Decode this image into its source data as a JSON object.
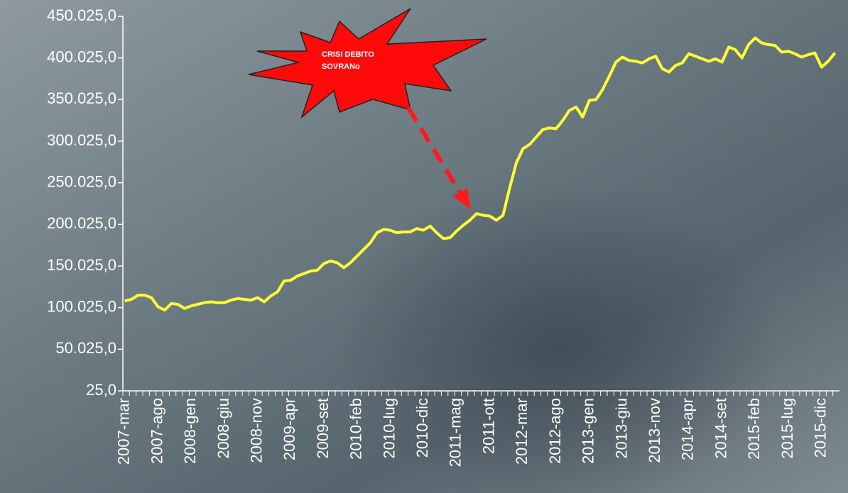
{
  "chart_data": {
    "type": "line",
    "annotation": [
      "CRISI DEBITO",
      "SOVRANo"
    ],
    "categories": [
      "2007-mar",
      null,
      null,
      null,
      null,
      "2007-ago",
      null,
      null,
      null,
      null,
      "2008-gen",
      null,
      null,
      null,
      null,
      "2008-giu",
      null,
      null,
      null,
      null,
      "2008-nov",
      null,
      null,
      null,
      null,
      "2009-apr",
      null,
      null,
      null,
      null,
      "2009-set",
      null,
      null,
      null,
      null,
      "2010-feb",
      null,
      null,
      null,
      null,
      "2010-lug",
      null,
      null,
      null,
      null,
      "2010-dic",
      null,
      null,
      null,
      null,
      "2011-mag",
      null,
      null,
      null,
      null,
      "2011-ott",
      null,
      null,
      null,
      null,
      "2012-mar",
      null,
      null,
      null,
      null,
      "2012-ago",
      null,
      null,
      null,
      null,
      "2013-gen",
      null,
      null,
      null,
      null,
      "2013-giu",
      null,
      null,
      null,
      null,
      "2013-nov",
      null,
      null,
      null,
      null,
      "2014-apr",
      null,
      null,
      null,
      null,
      "2014-set",
      null,
      null,
      null,
      null,
      "2015-feb",
      null,
      null,
      null,
      null,
      "2015-lug",
      null,
      null,
      null,
      null,
      "2015-dic",
      null,
      null
    ],
    "values": [
      108000,
      110000,
      115000,
      115000,
      112000,
      101000,
      97000,
      105000,
      104000,
      99000,
      102000,
      104000,
      106000,
      107000,
      106000,
      106000,
      109000,
      111000,
      110000,
      109000,
      112000,
      107000,
      114000,
      119000,
      132000,
      133000,
      138000,
      141000,
      144000,
      145000,
      153000,
      156000,
      154000,
      148000,
      154000,
      162000,
      170000,
      178000,
      190000,
      194000,
      193000,
      190000,
      191000,
      191000,
      195000,
      193000,
      198000,
      190000,
      183000,
      184000,
      192000,
      199000,
      205000,
      213000,
      211000,
      210000,
      205000,
      211000,
      244000,
      274000,
      291000,
      296000,
      305000,
      314000,
      316000,
      315000,
      325000,
      337000,
      341000,
      329000,
      349000,
      350000,
      362000,
      378000,
      395000,
      401000,
      397000,
      396000,
      394000,
      399000,
      402000,
      387000,
      383000,
      391000,
      394000,
      405000,
      402000,
      399000,
      396000,
      399000,
      395000,
      413000,
      410000,
      400000,
      416000,
      424000,
      418000,
      416000,
      415000,
      407000,
      408000,
      405000,
      401000,
      404000,
      406000,
      389000,
      396000,
      406000
    ],
    "color": "#ffff33",
    "ylim": [
      25,
      450025
    ],
    "yticks": [
      {
        "value": 25,
        "label": "25,0"
      },
      {
        "value": 50025,
        "label": "50.025,0"
      },
      {
        "value": 100025,
        "label": "100.025,0"
      },
      {
        "value": 150025,
        "label": "150.025,0"
      },
      {
        "value": 200025,
        "label": "200.025,0"
      },
      {
        "value": 250025,
        "label": "250.025,0"
      },
      {
        "value": 300025,
        "label": "300.025,0"
      },
      {
        "value": 350025,
        "label": "350.025,0"
      },
      {
        "value": 400025,
        "label": "400.025,0"
      },
      {
        "value": 450025,
        "label": "450.025,0"
      }
    ]
  }
}
